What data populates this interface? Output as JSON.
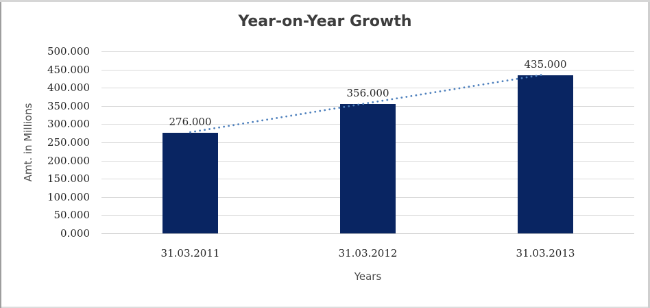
{
  "chart_data": {
    "type": "bar",
    "title": "Year-on-Year Growth",
    "categories": [
      "31.03.2011",
      "31.03.2012",
      "31.03.2013"
    ],
    "values": [
      276,
      356,
      435
    ],
    "bar_labels": [
      "276.000",
      "356.000",
      "435.000"
    ],
    "xlabel": "Years",
    "ylabel": "Amt. in Millions",
    "ylim": [
      0,
      500
    ],
    "ytick_step": 50,
    "ytick_labels": [
      "0.000",
      "50.000",
      "100.000",
      "150.000",
      "200.000",
      "250.000",
      "300.000",
      "350.000",
      "400.000",
      "450.000",
      "500.000"
    ],
    "grid": true,
    "legend": "none",
    "trendline": {
      "style": "dotted",
      "follows_values": [
        276,
        356,
        435
      ],
      "color": "#4f81bd"
    },
    "colors": {
      "bar": "#092562",
      "gridline": "#d9d9d9",
      "axis_line": "#c6c6c6",
      "title_text": "#3d3d3d",
      "tick_text": "#262626",
      "axis_title_text": "#4a4a4a",
      "trendline": "#4f81bd",
      "background": "#ffffff",
      "frame_border": "#c9c9c9"
    }
  }
}
